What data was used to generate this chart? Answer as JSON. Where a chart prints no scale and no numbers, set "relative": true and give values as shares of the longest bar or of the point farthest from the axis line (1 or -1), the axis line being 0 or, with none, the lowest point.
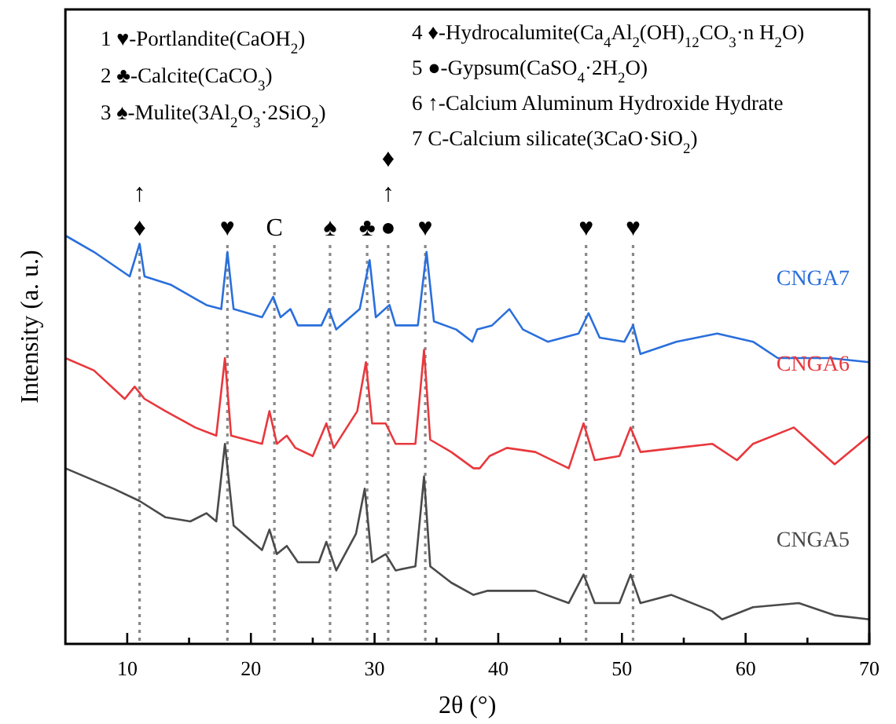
{
  "chart_data": {
    "type": "line",
    "relative": true,
    "xlabel": "2θ (°)",
    "ylabel": "Intensity (a. u.)",
    "xlim": [
      5,
      70
    ],
    "xticks": [
      10,
      {
        "value": 15,
        "label": null
      },
      20,
      {
        "value": 25,
        "label": null
      },
      30,
      {
        "value": 35,
        "label": null
      },
      40,
      {
        "value": 45,
        "label": null
      },
      50,
      {
        "value": 55,
        "label": null
      },
      60,
      {
        "value": 65,
        "label": null
      },
      70
    ],
    "legend": false,
    "annotations": [
      "1 ♥-Portlandite(CaOH$_{2}$)",
      "2 ♣-Calcite(CaCO$_{3}$)",
      "3 ♠-Mulite(3Al$_{2}$O$_{3}$·2SiO$_{2}$)",
      "4 ♦-Hydrocalumite(Ca$_{4}$Al$_{2}$(OH)$_{12}$CO$_{3}$·n H$_{2}$O)",
      "5 ●-Gypsum(CaSO$_{4}$·2H$_{2}$O)",
      "6 ↑-Calcium Aluminum Hydroxide Hydrate",
      "7 C-Calcium silicate(3CaO·SiO$_{2}$)"
    ],
    "ref_lines": [
      {
        "axis": "x",
        "value": 11,
        "label": "↑\n♦",
        "color": "#888888",
        "line_style": "dotted"
      },
      {
        "axis": "x",
        "value": 18.1,
        "label": "♥",
        "color": "#888888",
        "line_style": "dotted"
      },
      {
        "axis": "x",
        "value": 21.9,
        "label": "C",
        "color": "#888888",
        "line_style": "dotted"
      },
      {
        "axis": "x",
        "value": 26.4,
        "label": "♠",
        "color": "#888888",
        "line_style": "dotted"
      },
      {
        "axis": "x",
        "value": 29.4,
        "label": "♣",
        "color": "#888888",
        "line_style": "dotted"
      },
      {
        "axis": "x",
        "value": 31.1,
        "label": "♦\n↑\n●",
        "color": "#888888",
        "line_style": "dotted"
      },
      {
        "axis": "x",
        "value": 34.1,
        "label": "♥",
        "color": "#888888",
        "line_style": "dotted"
      },
      {
        "axis": "x",
        "value": 47.1,
        "label": "♥",
        "color": "#888888",
        "line_style": "dotted"
      },
      {
        "axis": "x",
        "value": 50.9,
        "label": "♥",
        "color": "#888888",
        "line_style": "dotted"
      }
    ],
    "series": [
      {
        "name": "CNGA7",
        "color": "#2a6fdc",
        "x": [
          5.0,
          7.3,
          10.2,
          11.0,
          11.4,
          13.5,
          16.4,
          17.6,
          18.1,
          18.6,
          20.9,
          21.8,
          22.4,
          23.2,
          23.8,
          25.7,
          26.3,
          26.9,
          28.8,
          29.6,
          30.1,
          31.2,
          31.7,
          33.5,
          34.2,
          34.8,
          36.6,
          37.9,
          38.3,
          39.5,
          40.9,
          42.0,
          44.0,
          46.5,
          47.3,
          48.2,
          50.2,
          50.9,
          51.5,
          54.4,
          57.7,
          60.6,
          62.6,
          66.8,
          70
        ],
        "values": [
          1.0,
          0.96,
          0.9,
          0.98,
          0.9,
          0.88,
          0.83,
          0.82,
          0.96,
          0.82,
          0.8,
          0.85,
          0.8,
          0.82,
          0.78,
          0.78,
          0.82,
          0.77,
          0.82,
          0.94,
          0.8,
          0.83,
          0.78,
          0.78,
          0.96,
          0.79,
          0.77,
          0.74,
          0.77,
          0.78,
          0.82,
          0.77,
          0.74,
          0.76,
          0.81,
          0.75,
          0.74,
          0.78,
          0.71,
          0.74,
          0.76,
          0.74,
          0.7,
          0.7,
          0.69
        ]
      },
      {
        "name": "CNGA6",
        "color": "#e8383d",
        "x": [
          5.0,
          7.3,
          9.8,
          10.6,
          11.4,
          13.1,
          15.5,
          17.2,
          17.9,
          18.4,
          20.9,
          21.5,
          22.1,
          22.9,
          23.6,
          25.0,
          26.1,
          26.7,
          28.6,
          29.3,
          29.8,
          30.9,
          31.7,
          33.3,
          34.0,
          34.5,
          36.2,
          38.0,
          38.5,
          39.3,
          40.7,
          43.0,
          45.7,
          46.9,
          47.8,
          49.8,
          50.7,
          51.5,
          54.4,
          57.3,
          59.3,
          60.6,
          63.9,
          67.2,
          70
        ],
        "values": [
          0.7,
          0.67,
          0.6,
          0.63,
          0.6,
          0.57,
          0.53,
          0.51,
          0.7,
          0.51,
          0.49,
          0.57,
          0.49,
          0.51,
          0.48,
          0.46,
          0.54,
          0.48,
          0.57,
          0.69,
          0.54,
          0.54,
          0.49,
          0.49,
          0.72,
          0.5,
          0.47,
          0.43,
          0.43,
          0.46,
          0.48,
          0.47,
          0.43,
          0.54,
          0.45,
          0.46,
          0.53,
          0.47,
          0.48,
          0.49,
          0.45,
          0.49,
          0.53,
          0.44,
          0.51
        ]
      },
      {
        "name": "CNGA5",
        "color": "#4a4a4a",
        "x": [
          5.0,
          8.9,
          11.0,
          13.1,
          15.1,
          16.4,
          17.2,
          17.9,
          18.6,
          20.9,
          21.5,
          22.1,
          22.9,
          23.8,
          25.5,
          26.1,
          26.9,
          28.5,
          29.2,
          29.8,
          30.9,
          31.7,
          33.3,
          34.0,
          34.5,
          36.2,
          38.0,
          39.1,
          40.7,
          43.0,
          45.7,
          46.9,
          47.8,
          49.8,
          50.7,
          51.5,
          54.0,
          57.3,
          58.1,
          60.6,
          64.3,
          67.2,
          70
        ],
        "values": [
          0.43,
          0.38,
          0.35,
          0.31,
          0.3,
          0.32,
          0.3,
          0.49,
          0.29,
          0.23,
          0.28,
          0.22,
          0.24,
          0.2,
          0.2,
          0.25,
          0.18,
          0.27,
          0.38,
          0.2,
          0.22,
          0.18,
          0.19,
          0.41,
          0.19,
          0.15,
          0.12,
          0.13,
          0.13,
          0.13,
          0.1,
          0.17,
          0.1,
          0.1,
          0.17,
          0.1,
          0.12,
          0.08,
          0.06,
          0.09,
          0.1,
          0.07,
          0.06
        ]
      }
    ]
  }
}
